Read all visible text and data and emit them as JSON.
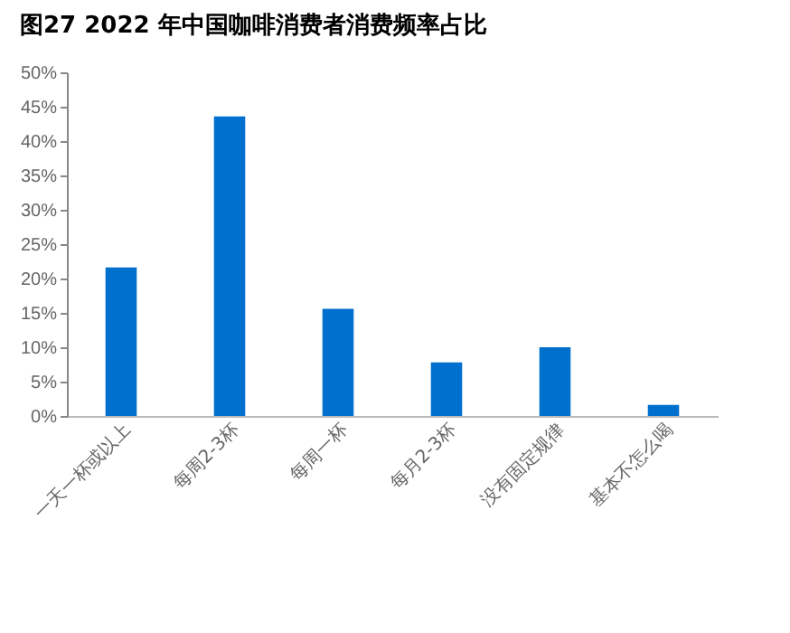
{
  "chart_data": {
    "type": "bar",
    "title": "图27 2022 年中国咖啡消费者消费频率占比",
    "categories": [
      "一天一杯或以上",
      "每周2-3杯",
      "每周一杯",
      "每月2-3杯",
      "没有固定规律",
      "基本不怎么喝"
    ],
    "values": [
      21.6,
      43.6,
      15.6,
      7.8,
      10.0,
      1.6
    ],
    "color": "#0070ce",
    "ylim": [
      0,
      50
    ],
    "yticks": [
      {
        "value": 0,
        "label": "0%"
      },
      {
        "value": 5,
        "label": "5%"
      },
      {
        "value": 10,
        "label": "10%"
      },
      {
        "value": 15,
        "label": "15%"
      },
      {
        "value": 20,
        "label": "20%"
      },
      {
        "value": 25,
        "label": "25%"
      },
      {
        "value": 30,
        "label": "30%"
      },
      {
        "value": 35,
        "label": "35%"
      },
      {
        "value": 40,
        "label": "40%"
      },
      {
        "value": 45,
        "label": "45%"
      },
      {
        "value": 50,
        "label": "50%"
      }
    ],
    "grid": false
  }
}
